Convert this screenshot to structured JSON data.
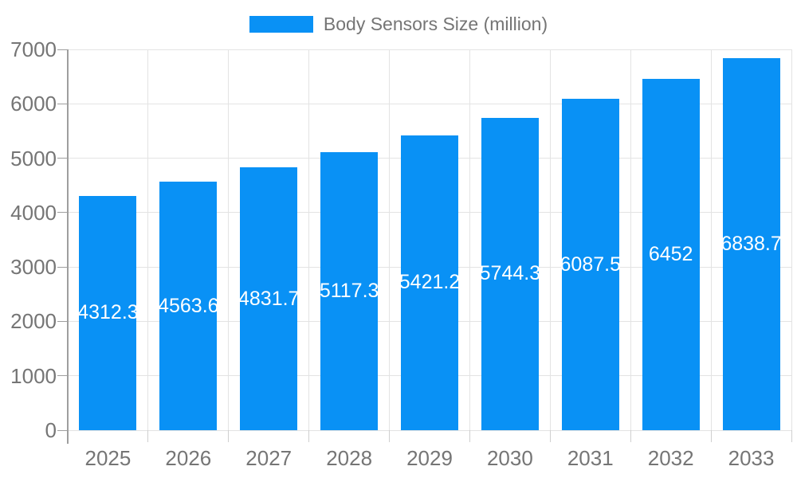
{
  "legend": {
    "label": "Body Sensors Size (million)"
  },
  "colors": {
    "bar": "#0991F5",
    "grid": "#E3E3E3",
    "axis": "#9E9E9E",
    "x_tick": "#CFCFCF",
    "tick_text": "#757575",
    "legend_text": "#757575",
    "bar_label_text": "#FFFFFF",
    "background": "#FFFFFF"
  },
  "chart_data": {
    "type": "bar",
    "title": "",
    "legend_label": "Body Sensors Size (million)",
    "legend_position": "top-center",
    "categories": [
      "2025",
      "2026",
      "2027",
      "2028",
      "2029",
      "2030",
      "2031",
      "2032",
      "2033"
    ],
    "series": [
      {
        "name": "Body Sensors Size (million)",
        "values": [
          4312.3,
          4563.6,
          4831.7,
          5117.3,
          5421.2,
          5744.3,
          6087.5,
          6452,
          6838.7
        ]
      }
    ],
    "value_labels": [
      "4312.3",
      "4563.6",
      "4831.7",
      "5117.3",
      "5421.2",
      "5744.3",
      "6087.5",
      "6452",
      "6838.7"
    ],
    "xlabel": "",
    "ylabel": "",
    "ylim": [
      0,
      7000
    ],
    "yticks": [
      0,
      1000,
      2000,
      3000,
      4000,
      5000,
      6000,
      7000
    ],
    "grid": true
  }
}
